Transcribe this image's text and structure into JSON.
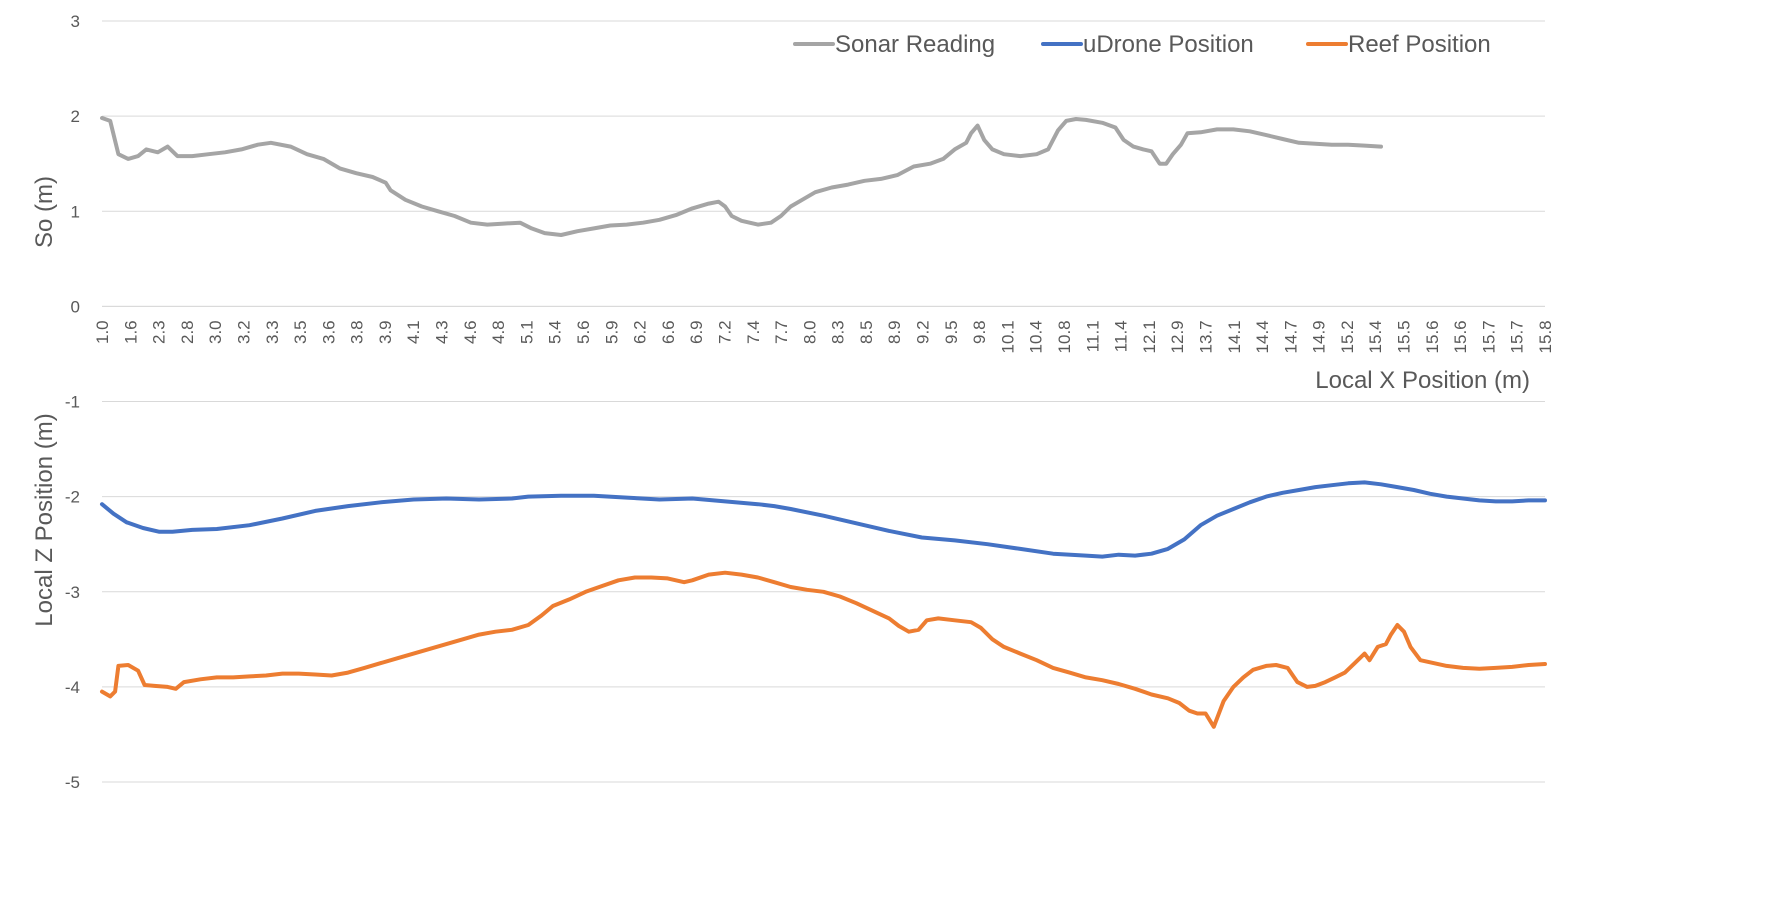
{
  "chart_data": {
    "type": "line",
    "x_label": "Local X Position (m)",
    "y_label_upper": "So (m)",
    "y_label_lower": "Local Z Position (m)",
    "ylim": [
      -5,
      3
    ],
    "yticks": [
      3,
      2,
      1,
      0,
      -1,
      -2,
      -3,
      -4,
      -5
    ],
    "x_tick_labels": [
      "1.0",
      "1.6",
      "2.3",
      "2.8",
      "3.0",
      "3.2",
      "3.3",
      "3.5",
      "3.6",
      "3.8",
      "3.9",
      "4.1",
      "4.3",
      "4.6",
      "4.8",
      "5.1",
      "5.4",
      "5.6",
      "5.9",
      "6.2",
      "6.6",
      "6.9",
      "7.2",
      "7.4",
      "7.7",
      "8.0",
      "8.3",
      "8.5",
      "8.9",
      "9.2",
      "9.5",
      "9.8",
      "10.1",
      "10.4",
      "10.8",
      "11.1",
      "11.4",
      "12.1",
      "12.9",
      "13.7",
      "14.1",
      "14.4",
      "14.7",
      "14.9",
      "15.2",
      "15.4",
      "15.5",
      "15.6",
      "15.6",
      "15.7",
      "15.7",
      "15.8"
    ],
    "grid": true,
    "legend_position": "top-right",
    "series": [
      {
        "name": "Sonar Reading",
        "color": "#a5a5a5",
        "points": [
          [
            0,
            1.98
          ],
          [
            0.5,
            1.95
          ],
          [
            1,
            1.6
          ],
          [
            1.6,
            1.55
          ],
          [
            2.2,
            1.58
          ],
          [
            2.7,
            1.65
          ],
          [
            3.4,
            1.62
          ],
          [
            4,
            1.68
          ],
          [
            4.6,
            1.58
          ],
          [
            5.5,
            1.58
          ],
          [
            6.5,
            1.6
          ],
          [
            7.5,
            1.62
          ],
          [
            8.5,
            1.65
          ],
          [
            9.5,
            1.7
          ],
          [
            10.3,
            1.72
          ],
          [
            11.5,
            1.68
          ],
          [
            12.5,
            1.6
          ],
          [
            13.5,
            1.55
          ],
          [
            14.5,
            1.45
          ],
          [
            15.5,
            1.4
          ],
          [
            16.5,
            1.36
          ],
          [
            17.3,
            1.3
          ],
          [
            17.6,
            1.22
          ],
          [
            18.5,
            1.12
          ],
          [
            19.5,
            1.05
          ],
          [
            20.5,
            1
          ],
          [
            21.5,
            0.95
          ],
          [
            22.5,
            0.88
          ],
          [
            23.5,
            0.86
          ],
          [
            24.5,
            0.87
          ],
          [
            25.5,
            0.88
          ],
          [
            26.2,
            0.82
          ],
          [
            27,
            0.77
          ],
          [
            28,
            0.75
          ],
          [
            29,
            0.79
          ],
          [
            30,
            0.82
          ],
          [
            31,
            0.85
          ],
          [
            32,
            0.86
          ],
          [
            33,
            0.88
          ],
          [
            34,
            0.91
          ],
          [
            35,
            0.96
          ],
          [
            36,
            1.03
          ],
          [
            37,
            1.08
          ],
          [
            37.6,
            1.1
          ],
          [
            38,
            1.05
          ],
          [
            38.4,
            0.95
          ],
          [
            39,
            0.9
          ],
          [
            40,
            0.86
          ],
          [
            40.8,
            0.88
          ],
          [
            41.4,
            0.95
          ],
          [
            42,
            1.05
          ],
          [
            42.7,
            1.12
          ],
          [
            43.5,
            1.2
          ],
          [
            44.5,
            1.25
          ],
          [
            45.5,
            1.28
          ],
          [
            46.5,
            1.32
          ],
          [
            47.5,
            1.34
          ],
          [
            48.5,
            1.38
          ],
          [
            49.5,
            1.47
          ],
          [
            50.5,
            1.5
          ],
          [
            51.3,
            1.55
          ],
          [
            52,
            1.65
          ],
          [
            52.7,
            1.72
          ],
          [
            53,
            1.82
          ],
          [
            53.4,
            1.9
          ],
          [
            53.8,
            1.75
          ],
          [
            54.3,
            1.65
          ],
          [
            55,
            1.6
          ],
          [
            56,
            1.58
          ],
          [
            57,
            1.6
          ],
          [
            57.7,
            1.65
          ],
          [
            58.3,
            1.85
          ],
          [
            58.8,
            1.95
          ],
          [
            59.4,
            1.97
          ],
          [
            60,
            1.96
          ],
          [
            61,
            1.93
          ],
          [
            61.8,
            1.88
          ],
          [
            62.3,
            1.75
          ],
          [
            62.9,
            1.68
          ],
          [
            63.5,
            1.65
          ],
          [
            64,
            1.63
          ],
          [
            64.5,
            1.5
          ],
          [
            64.9,
            1.5
          ],
          [
            65.3,
            1.6
          ],
          [
            65.8,
            1.7
          ],
          [
            66.2,
            1.82
          ],
          [
            67,
            1.83
          ],
          [
            68,
            1.86
          ],
          [
            69,
            1.86
          ],
          [
            70,
            1.84
          ],
          [
            71,
            1.8
          ],
          [
            72,
            1.76
          ],
          [
            73,
            1.72
          ],
          [
            74,
            1.71
          ],
          [
            75,
            1.7
          ],
          [
            76,
            1.7
          ],
          [
            77,
            1.69
          ],
          [
            78,
            1.68
          ]
        ]
      },
      {
        "name": "uDrone Position",
        "color": "#4472c4",
        "points": [
          [
            0,
            -2.08
          ],
          [
            0.7,
            -2.18
          ],
          [
            1.5,
            -2.27
          ],
          [
            2.5,
            -2.33
          ],
          [
            3.5,
            -2.37
          ],
          [
            4.3,
            -2.37
          ],
          [
            5.5,
            -2.35
          ],
          [
            7,
            -2.34
          ],
          [
            9,
            -2.3
          ],
          [
            11,
            -2.23
          ],
          [
            13,
            -2.15
          ],
          [
            15,
            -2.1
          ],
          [
            17,
            -2.06
          ],
          [
            19,
            -2.03
          ],
          [
            21,
            -2.02
          ],
          [
            23,
            -2.03
          ],
          [
            25,
            -2.02
          ],
          [
            26,
            -2
          ],
          [
            28,
            -1.99
          ],
          [
            30,
            -1.99
          ],
          [
            32,
            -2.01
          ],
          [
            34,
            -2.03
          ],
          [
            36,
            -2.02
          ],
          [
            38,
            -2.05
          ],
          [
            40,
            -2.08
          ],
          [
            41,
            -2.1
          ],
          [
            42,
            -2.13
          ],
          [
            44,
            -2.2
          ],
          [
            46,
            -2.28
          ],
          [
            48,
            -2.36
          ],
          [
            50,
            -2.43
          ],
          [
            52,
            -2.46
          ],
          [
            54,
            -2.5
          ],
          [
            56,
            -2.55
          ],
          [
            58,
            -2.6
          ],
          [
            60,
            -2.62
          ],
          [
            61,
            -2.63
          ],
          [
            62,
            -2.61
          ],
          [
            63,
            -2.62
          ],
          [
            64,
            -2.6
          ],
          [
            65,
            -2.55
          ],
          [
            66,
            -2.45
          ],
          [
            67,
            -2.3
          ],
          [
            68,
            -2.2
          ],
          [
            69,
            -2.13
          ],
          [
            70,
            -2.06
          ],
          [
            71,
            -2
          ],
          [
            72,
            -1.96
          ],
          [
            73,
            -1.93
          ],
          [
            74,
            -1.9
          ],
          [
            75,
            -1.88
          ],
          [
            76,
            -1.86
          ],
          [
            77,
            -1.85
          ],
          [
            78,
            -1.87
          ],
          [
            79,
            -1.9
          ],
          [
            80,
            -1.93
          ],
          [
            81,
            -1.97
          ],
          [
            82,
            -2
          ],
          [
            83,
            -2.02
          ],
          [
            84,
            -2.04
          ],
          [
            85,
            -2.05
          ],
          [
            86,
            -2.05
          ],
          [
            87,
            -2.04
          ],
          [
            88,
            -2.04
          ]
        ]
      },
      {
        "name": "Reef Position",
        "color": "#ed7d31",
        "points": [
          [
            0,
            -4.05
          ],
          [
            0.5,
            -4.1
          ],
          [
            0.8,
            -4.05
          ],
          [
            1,
            -3.78
          ],
          [
            1.6,
            -3.77
          ],
          [
            2.2,
            -3.83
          ],
          [
            2.6,
            -3.98
          ],
          [
            3.2,
            -3.99
          ],
          [
            4,
            -4
          ],
          [
            4.5,
            -4.02
          ],
          [
            5,
            -3.95
          ],
          [
            6,
            -3.92
          ],
          [
            7,
            -3.9
          ],
          [
            8,
            -3.9
          ],
          [
            9,
            -3.89
          ],
          [
            10,
            -3.88
          ],
          [
            11,
            -3.86
          ],
          [
            12,
            -3.86
          ],
          [
            13,
            -3.87
          ],
          [
            14,
            -3.88
          ],
          [
            15,
            -3.85
          ],
          [
            16,
            -3.8
          ],
          [
            17,
            -3.75
          ],
          [
            18,
            -3.7
          ],
          [
            19,
            -3.65
          ],
          [
            20,
            -3.6
          ],
          [
            21,
            -3.55
          ],
          [
            22,
            -3.5
          ],
          [
            23,
            -3.45
          ],
          [
            24,
            -3.42
          ],
          [
            25,
            -3.4
          ],
          [
            26,
            -3.35
          ],
          [
            26.8,
            -3.25
          ],
          [
            27.5,
            -3.15
          ],
          [
            28.5,
            -3.08
          ],
          [
            29.5,
            -3
          ],
          [
            30.5,
            -2.94
          ],
          [
            31.5,
            -2.88
          ],
          [
            32.5,
            -2.85
          ],
          [
            33.5,
            -2.85
          ],
          [
            34.5,
            -2.86
          ],
          [
            35.5,
            -2.9
          ],
          [
            36,
            -2.88
          ],
          [
            37,
            -2.82
          ],
          [
            38,
            -2.8
          ],
          [
            39,
            -2.82
          ],
          [
            40,
            -2.85
          ],
          [
            41,
            -2.9
          ],
          [
            42,
            -2.95
          ],
          [
            43,
            -2.98
          ],
          [
            44,
            -3
          ],
          [
            45,
            -3.05
          ],
          [
            46,
            -3.12
          ],
          [
            47,
            -3.2
          ],
          [
            48,
            -3.28
          ],
          [
            48.6,
            -3.36
          ],
          [
            49.2,
            -3.42
          ],
          [
            49.8,
            -3.4
          ],
          [
            50.3,
            -3.3
          ],
          [
            51,
            -3.28
          ],
          [
            52,
            -3.3
          ],
          [
            53,
            -3.32
          ],
          [
            53.6,
            -3.38
          ],
          [
            54.3,
            -3.5
          ],
          [
            55,
            -3.58
          ],
          [
            56,
            -3.65
          ],
          [
            57,
            -3.72
          ],
          [
            58,
            -3.8
          ],
          [
            59,
            -3.85
          ],
          [
            60,
            -3.9
          ],
          [
            61,
            -3.93
          ],
          [
            62,
            -3.97
          ],
          [
            63,
            -4.02
          ],
          [
            64,
            -4.08
          ],
          [
            65,
            -4.12
          ],
          [
            65.7,
            -4.17
          ],
          [
            66.3,
            -4.25
          ],
          [
            66.8,
            -4.28
          ],
          [
            67.3,
            -4.28
          ],
          [
            67.8,
            -4.42
          ],
          [
            68.4,
            -4.15
          ],
          [
            69,
            -4
          ],
          [
            69.6,
            -3.9
          ],
          [
            70.2,
            -3.82
          ],
          [
            71,
            -3.78
          ],
          [
            71.6,
            -3.77
          ],
          [
            72.3,
            -3.8
          ],
          [
            72.9,
            -3.95
          ],
          [
            73.5,
            -4
          ],
          [
            74,
            -3.99
          ],
          [
            74.6,
            -3.95
          ],
          [
            75.2,
            -3.9
          ],
          [
            75.8,
            -3.85
          ],
          [
            76.4,
            -3.75
          ],
          [
            77,
            -3.65
          ],
          [
            77.3,
            -3.72
          ],
          [
            77.8,
            -3.58
          ],
          [
            78.3,
            -3.55
          ],
          [
            78.6,
            -3.45
          ],
          [
            79,
            -3.35
          ],
          [
            79.4,
            -3.42
          ],
          [
            79.8,
            -3.58
          ],
          [
            80.4,
            -3.72
          ],
          [
            81.2,
            -3.75
          ],
          [
            82,
            -3.78
          ],
          [
            83,
            -3.8
          ],
          [
            84,
            -3.81
          ],
          [
            85,
            -3.8
          ],
          [
            86,
            -3.79
          ],
          [
            87,
            -3.77
          ],
          [
            88,
            -3.76
          ]
        ]
      }
    ]
  }
}
